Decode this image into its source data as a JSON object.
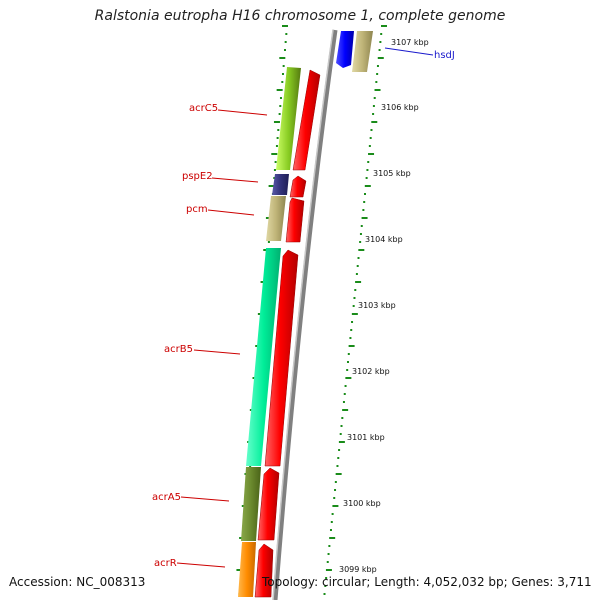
{
  "title": "Ralstonia eutropha H16 chromosome 1, complete genome",
  "footer": {
    "accession": "Accession: NC_008313",
    "topology": "Topology: circular; Length: 4,052,032 bp; Genes: 3,711"
  },
  "colors": {
    "backbone": "#888888",
    "cds_forward": "#ff0000",
    "tick": "#1a8c1a",
    "label_red": "#cc0000",
    "label_blue": "#1a1acc"
  },
  "scale_labels": [
    "3107 kbp",
    "3106 kbp",
    "3105 kbp",
    "3104 kbp",
    "3103 kbp",
    "3102 kbp",
    "3101 kbp",
    "3100 kbp",
    "3099 kbp"
  ],
  "genes": [
    {
      "name": "hsdJ",
      "color": "#1a1acc"
    },
    {
      "name": "acrC5",
      "color": "#cc0000"
    },
    {
      "name": "pspE2",
      "color": "#cc0000"
    },
    {
      "name": "pcm",
      "color": "#cc0000"
    },
    {
      "name": "acrB5",
      "color": "#cc0000"
    },
    {
      "name": "acrA5",
      "color": "#cc0000"
    },
    {
      "name": "acrR",
      "color": "#cc0000"
    }
  ]
}
